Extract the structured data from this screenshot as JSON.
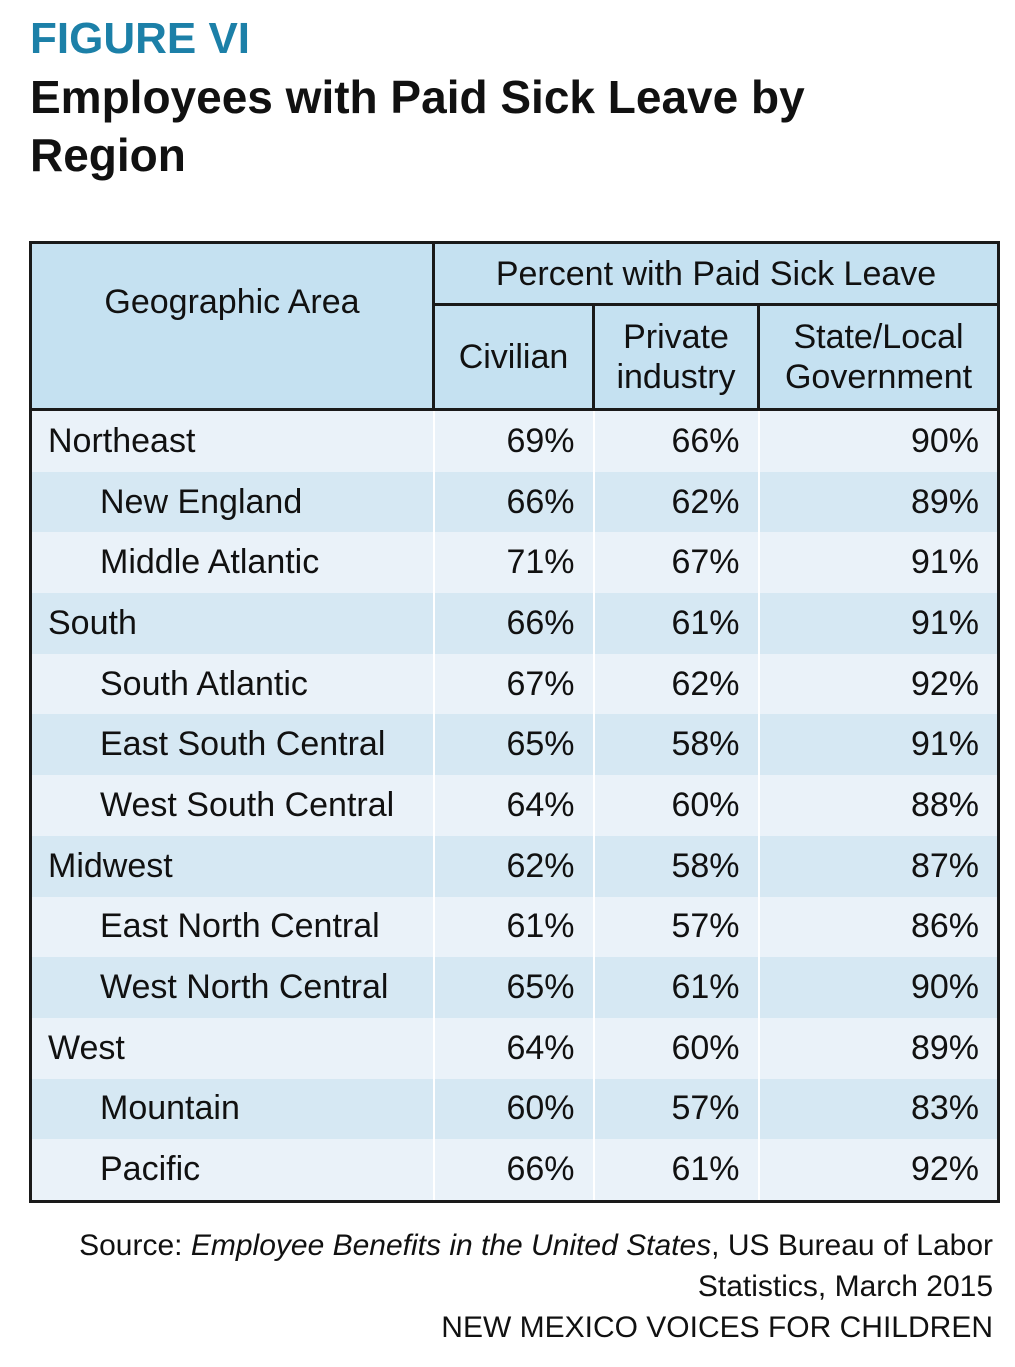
{
  "header": {
    "figure": "FIGURE VI",
    "title": "Employees with Paid Sick Leave by Region"
  },
  "table": {
    "columns": {
      "area": "Geographic Area",
      "group": "Percent with Paid Sick Leave",
      "measures": [
        "Civilian",
        "Private industry",
        "State/Local Government"
      ]
    },
    "regions": [
      {
        "name": "Northeast",
        "values": [
          "69%",
          "66%",
          "90%"
        ],
        "divisions": [
          {
            "name": "New England",
            "values": [
              "66%",
              "62%",
              "89%"
            ]
          },
          {
            "name": "Middle Atlantic",
            "values": [
              "71%",
              "67%",
              "91%"
            ]
          }
        ]
      },
      {
        "name": "South",
        "values": [
          "66%",
          "61%",
          "91%"
        ],
        "divisions": [
          {
            "name": "South Atlantic",
            "values": [
              "67%",
              "62%",
              "92%"
            ]
          },
          {
            "name": "East South Central",
            "values": [
              "65%",
              "58%",
              "91%"
            ]
          },
          {
            "name": "West South Central",
            "values": [
              "64%",
              "60%",
              "88%"
            ]
          }
        ]
      },
      {
        "name": "Midwest",
        "values": [
          "62%",
          "58%",
          "87%"
        ],
        "divisions": [
          {
            "name": "East North Central",
            "values": [
              "61%",
              "57%",
              "86%"
            ]
          },
          {
            "name": "West North Central",
            "values": [
              "65%",
              "61%",
              "90%"
            ]
          }
        ]
      },
      {
        "name": "West",
        "values": [
          "64%",
          "60%",
          "89%"
        ],
        "divisions": [
          {
            "name": "Mountain",
            "values": [
              "60%",
              "57%",
              "83%"
            ]
          },
          {
            "name": "Pacific",
            "values": [
              "66%",
              "61%",
              "92%"
            ]
          }
        ]
      }
    ]
  },
  "source": {
    "prefix": "Source:",
    "title": "Employee Benefits in the United States",
    "rest": ", US Bureau of Labor Statistics, March 2015",
    "org": "NEW MEXICO VOICES FOR CHILDREN"
  }
}
